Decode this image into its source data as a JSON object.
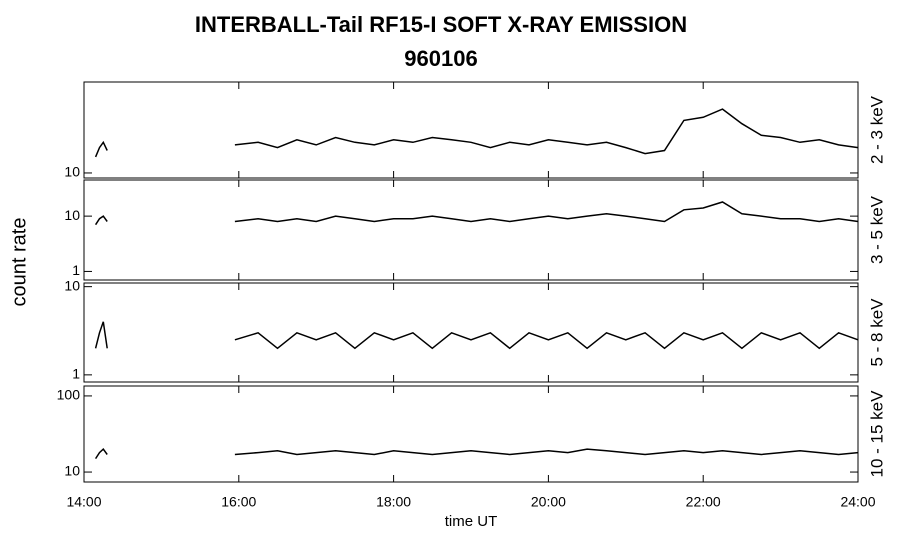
{
  "chart_data": [
    {
      "type": "line",
      "title": "INTERBALL-Tail RF15-I SOFT X-RAY EMISSION",
      "subtitle": "960106",
      "ylabel": "count rate",
      "log_y": true,
      "xlim": [
        14,
        24
      ],
      "ylim": [
        9,
        67
      ],
      "yticks": [
        10
      ],
      "x": [
        14.15,
        14.2,
        14.25,
        14.3,
        15.1,
        15.95,
        16.25,
        16.5,
        16.75,
        17,
        17.25,
        17.5,
        17.75,
        18,
        18.25,
        18.5,
        18.75,
        19,
        19.25,
        19.5,
        19.75,
        20,
        20.25,
        20.5,
        20.75,
        21,
        21.25,
        21.5,
        21.75,
        22,
        22.25,
        22.5,
        22.75,
        23,
        23.25,
        23.5,
        23.75,
        24
      ],
      "series": [
        {
          "name": "2 - 3 keV",
          "color": "#000000",
          "values": [
            14,
            17,
            19,
            16,
            null,
            18,
            19,
            17,
            20,
            18,
            21,
            19,
            18,
            20,
            19,
            21,
            20,
            19,
            17,
            19,
            18,
            20,
            19,
            18,
            19,
            17,
            15,
            16,
            30,
            32,
            38,
            28,
            22,
            21,
            19,
            20,
            18,
            17
          ]
        }
      ]
    },
    {
      "type": "line",
      "log_y": true,
      "xlim": [
        14,
        24
      ],
      "ylim": [
        0.7,
        45
      ],
      "yticks": [
        1,
        10
      ],
      "x": [
        14.15,
        14.2,
        14.25,
        14.3,
        15.1,
        15.95,
        16.25,
        16.5,
        16.75,
        17,
        17.25,
        17.5,
        17.75,
        18,
        18.25,
        18.5,
        18.75,
        19,
        19.25,
        19.5,
        19.75,
        20,
        20.25,
        20.5,
        20.75,
        21,
        21.25,
        21.5,
        21.75,
        22,
        22.25,
        22.5,
        22.75,
        23,
        23.25,
        23.5,
        23.75,
        24
      ],
      "series": [
        {
          "name": "3 - 5 keV",
          "color": "#000000",
          "values": [
            7,
            9,
            10,
            8,
            null,
            8,
            9,
            8,
            9,
            8,
            10,
            9,
            8,
            9,
            9,
            10,
            9,
            8,
            9,
            8,
            9,
            10,
            9,
            10,
            11,
            10,
            9,
            8,
            13,
            14,
            18,
            11,
            10,
            9,
            9,
            8,
            9,
            8
          ]
        }
      ]
    },
    {
      "type": "line",
      "log_y": true,
      "xlim": [
        14,
        24
      ],
      "ylim": [
        0.83,
        11
      ],
      "yticks": [
        1,
        10
      ],
      "x": [
        14.15,
        14.2,
        14.25,
        14.3,
        15.1,
        15.95,
        16.25,
        16.5,
        16.75,
        17,
        17.25,
        17.5,
        17.75,
        18,
        18.25,
        18.5,
        18.75,
        19,
        19.25,
        19.5,
        19.75,
        20,
        20.25,
        20.5,
        20.75,
        21,
        21.25,
        21.5,
        21.75,
        22,
        22.25,
        22.5,
        22.75,
        23,
        23.25,
        23.5,
        23.75,
        24
      ],
      "series": [
        {
          "name": "5 - 8 keV",
          "color": "#000000",
          "values": [
            2,
            3,
            4,
            2,
            null,
            2.5,
            3,
            2,
            3,
            2.5,
            3,
            2,
            3,
            2.5,
            3,
            2,
            3,
            2.5,
            3,
            2,
            3,
            2.5,
            3,
            2,
            3,
            2.5,
            3,
            2,
            3,
            2.5,
            3,
            2,
            3,
            2.5,
            3,
            2,
            3,
            2.5
          ]
        }
      ]
    },
    {
      "type": "line",
      "log_y": true,
      "xlim": [
        14,
        24
      ],
      "ylim": [
        7.4,
        135
      ],
      "yticks": [
        10,
        100
      ],
      "xlabel": "time UT",
      "xticks": [
        {
          "value": 14,
          "label": "14:00"
        },
        {
          "value": 16,
          "label": "16:00"
        },
        {
          "value": 18,
          "label": "18:00"
        },
        {
          "value": 20,
          "label": "20:00"
        },
        {
          "value": 22,
          "label": "22:00"
        },
        {
          "value": 24,
          "label": "24:00"
        }
      ],
      "x": [
        14.15,
        14.2,
        14.25,
        14.3,
        15.1,
        15.95,
        16.25,
        16.5,
        16.75,
        17,
        17.25,
        17.5,
        17.75,
        18,
        18.25,
        18.5,
        18.75,
        19,
        19.25,
        19.5,
        19.75,
        20,
        20.25,
        20.5,
        20.75,
        21,
        21.25,
        21.5,
        21.75,
        22,
        22.25,
        22.5,
        22.75,
        23,
        23.25,
        23.5,
        23.75,
        24
      ],
      "series": [
        {
          "name": "10 - 15 keV",
          "color": "#000000",
          "values": [
            15,
            18,
            20,
            17,
            null,
            17,
            18,
            19,
            17,
            18,
            19,
            18,
            17,
            19,
            18,
            17,
            18,
            19,
            18,
            17,
            18,
            19,
            18,
            20,
            19,
            18,
            17,
            18,
            19,
            18,
            19,
            18,
            17,
            18,
            19,
            18,
            17,
            18
          ]
        }
      ]
    }
  ]
}
